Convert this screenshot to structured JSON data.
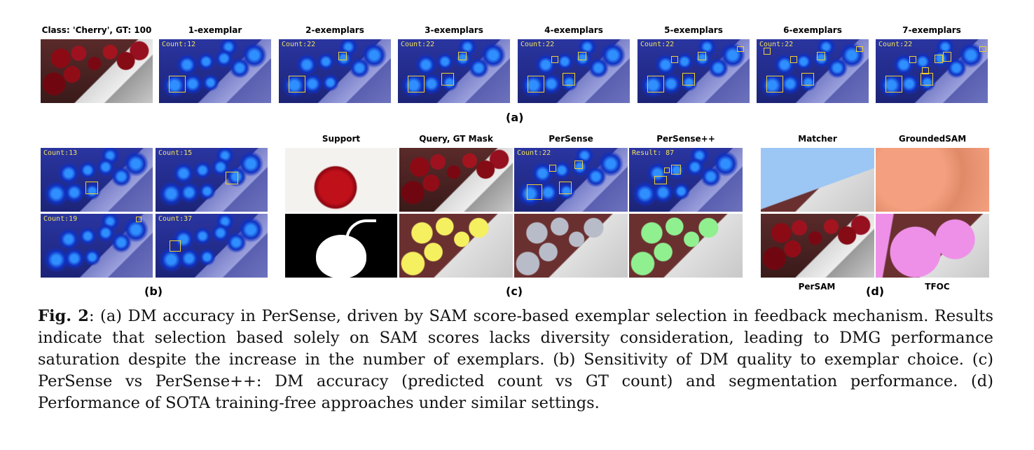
{
  "row_a": {
    "titles": [
      "Class: 'Cherry', GT: 100",
      "1-exemplar",
      "2-exemplars",
      "3-exemplars",
      "4-exemplars",
      "5-exemplars",
      "6-exemplars",
      "7-exemplars"
    ],
    "counts": [
      "Count:12",
      "Count:22",
      "Count:22",
      "Count:22",
      "Count:22",
      "Count:22",
      "Count:22"
    ],
    "sublabel": "(a)"
  },
  "row_b": {
    "counts": [
      "Count:13",
      "Count:15",
      "Count:19",
      "Count:37"
    ],
    "sublabel": "(b)"
  },
  "row_c": {
    "titles": [
      "Support",
      "Query, GT Mask",
      "PerSense",
      "PerSense++"
    ],
    "persense_count": "Count:22",
    "persensepp_result": "Result: 87",
    "sublabel": "(c)"
  },
  "row_d": {
    "titles_top": [
      "Matcher",
      "GroundedSAM"
    ],
    "titles_bottom": [
      "PerSAM",
      "TFOC"
    ],
    "sublabel": "(d)"
  },
  "caption": {
    "label": "Fig. 2",
    "text": ": (a) DM accuracy in PerSense, driven by SAM score-based exemplar selection in feedback mechanism. Results indicate that selection based solely on SAM scores lacks diversity consideration, leading to DMG performance saturation despite the increase in the number of exemplars. (b) Sensitivity of DM quality to exemplar choice. (c) PerSense vs PerSense++: DM accuracy (predicted count vs GT count) and segmentation performance. (d) Performance of SOTA training-free approaches under similar settings."
  }
}
